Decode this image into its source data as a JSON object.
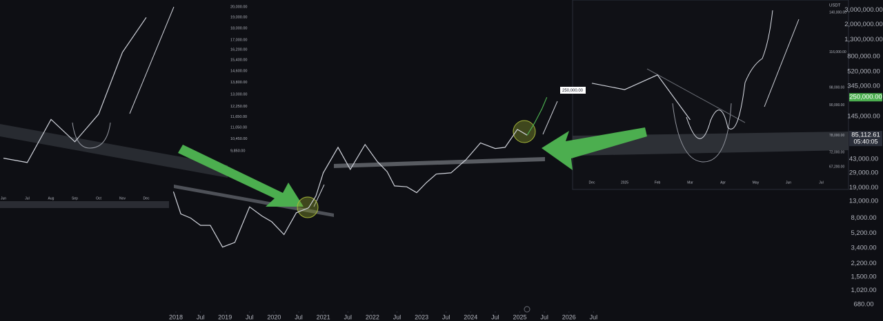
{
  "chart_data": [
    {
      "type": "line",
      "log": true,
      "x": [
        2017.95,
        2018.1,
        2018.3,
        2018.5,
        2018.7,
        2018.95,
        2019.2,
        2019.5,
        2019.75,
        2019.95,
        2020.2,
        2020.45,
        2020.7,
        2020.85,
        2021.0,
        2021.3,
        2021.55,
        2021.85,
        2022.1,
        2022.3,
        2022.45,
        2022.7,
        2022.9,
        2023.1,
        2023.3,
        2023.6,
        2023.9,
        2024.2,
        2024.5,
        2024.7,
        2024.95,
        2025.15,
        2025.3,
        2025.45,
        2025.55
      ],
      "series": [
        {
          "color": "#d1d4dc",
          "values": [
            17000,
            9000,
            8000,
            6500,
            6500,
            3500,
            4000,
            11000,
            8500,
            7200,
            5000,
            9300,
            10700,
            15000,
            29000,
            60000,
            32000,
            65000,
            40000,
            30000,
            20000,
            19500,
            16500,
            22000,
            28000,
            29000,
            42000,
            68000,
            58000,
            60000,
            100000,
            85000,
            null,
            null,
            null
          ]
        },
        {
          "color": "#4caf50",
          "values": [
            null,
            null,
            null,
            null,
            null,
            null,
            null,
            null,
            null,
            null,
            null,
            null,
            null,
            null,
            null,
            null,
            null,
            null,
            null,
            null,
            null,
            null,
            null,
            null,
            null,
            null,
            null,
            null,
            null,
            null,
            null,
            85000,
            120000,
            180000,
            250000
          ]
        }
      ],
      "xlim": [
        2014.42,
        2031.69
      ],
      "xticks": [
        2018,
        {
          "value": 2018.5,
          "label": "Jul"
        },
        2019,
        {
          "value": 2019.5,
          "label": "Jul"
        },
        2020,
        {
          "value": 2020.5,
          "label": "Jul"
        },
        2021,
        {
          "value": 2021.5,
          "label": "Jul"
        },
        2022,
        {
          "value": 2022.5,
          "label": "Jul"
        },
        2023,
        {
          "value": 2023.5,
          "label": "Jul"
        },
        2024,
        {
          "value": 2024.5,
          "label": "Jul"
        },
        2025,
        {
          "value": 2025.5,
          "label": "Jul"
        },
        2026,
        {
          "value": 2026.5,
          "label": "Jul"
        }
      ],
      "ylim": [
        560,
        4000000
      ],
      "yticks": [
        {
          "value": 3000000,
          "label": "3,000,000.00"
        },
        {
          "value": 2000000,
          "label": "2,000,000.00"
        },
        {
          "value": 1300000,
          "label": "1,300,000.00"
        },
        {
          "value": 800000,
          "label": "800,000.00"
        },
        {
          "value": 520000,
          "label": "520,000.00"
        },
        {
          "value": 345000,
          "label": "345,000.00"
        },
        {
          "value": 145000,
          "label": "145,000.00"
        },
        {
          "value": 43000,
          "label": "43,000.00"
        },
        {
          "value": 29000,
          "label": "29,000.00"
        },
        {
          "value": 19000,
          "label": "19,000.00"
        },
        {
          "value": 13000,
          "label": "13,000.00"
        },
        {
          "value": 8000,
          "label": "8,000.00"
        },
        {
          "value": 5200,
          "label": "5,200.00"
        },
        {
          "value": 3400,
          "label": "3,400.00"
        },
        {
          "value": 2200,
          "label": "2,200.00"
        },
        {
          "value": 1500,
          "label": "1,500.00"
        },
        {
          "value": 1020,
          "label": "1,020.00"
        },
        {
          "value": 680,
          "label": "680.00"
        }
      ],
      "price_tags": [
        {
          "value": 250000,
          "label": "250,000.00",
          "color": "#4caf50"
        },
        {
          "value": 85112.61,
          "label": "85,112.61",
          "sublabel": "05:40:05",
          "color": "#2a2e39"
        }
      ],
      "annotations": [
        "250,000.00"
      ]
    },
    {
      "type": "line",
      "log": true,
      "categories": [
        "Jun",
        "Jul",
        "Aug",
        "Sep",
        "Oct",
        "Nov",
        "Dec"
      ],
      "series": [
        {
          "color": "#d1d4dc",
          "values": [
            9500,
            9300,
            11500,
            10300,
            11800,
            16000,
            19000
          ]
        }
      ],
      "ylim": [
        7740,
        20700
      ],
      "yticks": [
        {
          "value": 20000,
          "label": "20,000.00"
        },
        {
          "value": 19000,
          "label": "19,000.00"
        },
        {
          "value": 18000,
          "label": "18,000.00"
        },
        {
          "value": 17000,
          "label": "17,000.00"
        },
        {
          "value": 16200,
          "label": "16,200.00"
        },
        {
          "value": 15400,
          "label": "15,400.00"
        },
        {
          "value": 14600,
          "label": "14,600.00"
        },
        {
          "value": 13800,
          "label": "13,800.00"
        },
        {
          "value": 13000,
          "label": "13,000.00"
        },
        {
          "value": 12250,
          "label": "12,250.00"
        },
        {
          "value": 11650,
          "label": "11,650.00"
        },
        {
          "value": 11050,
          "label": "11,050.00"
        },
        {
          "value": 10450,
          "label": "10,450.00"
        },
        {
          "value": 9850,
          "label": "9,850.00"
        }
      ]
    },
    {
      "type": "line",
      "log": true,
      "unit": "USDT",
      "categories": [
        "Dec",
        "2025",
        "Feb",
        "Mar",
        "Apr",
        "May",
        "Jun",
        "Jul"
      ],
      "series": [
        {
          "color": "#d1d4dc",
          "values": [
            100000,
            97000,
            104000,
            84000,
            null,
            null,
            null,
            null
          ]
        }
      ],
      "ylim": [
        61300,
        148600
      ],
      "yticks": [
        {
          "value": 140000,
          "label": "140,000.00"
        },
        {
          "value": 116000,
          "label": "116,000.00"
        },
        {
          "value": 98000,
          "label": "98,000.00"
        },
        {
          "value": 90000,
          "label": "90,000.00"
        },
        {
          "value": 78000,
          "label": "78,000.00"
        },
        {
          "value": 72000,
          "label": "72,000.00"
        },
        {
          "value": 67200,
          "label": "67,200.00"
        }
      ]
    }
  ]
}
